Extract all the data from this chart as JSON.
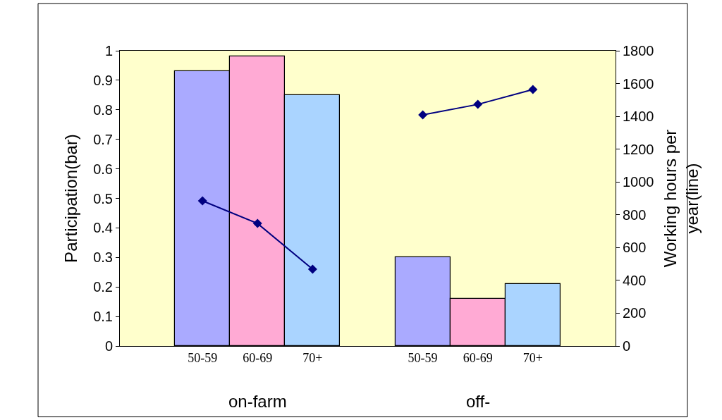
{
  "chart_data": {
    "type": "bar",
    "categories": [
      null,
      "50-59",
      "60-69",
      "70+",
      null,
      "50-59",
      "60-69",
      "70+",
      null
    ],
    "ylabel": "Participation(bar)",
    "y2label": "Working hours per year(line)",
    "annotations": [
      "on-farm",
      "off-"
    ],
    "series": [
      {
        "values": [
          null,
          0.93,
          0.98,
          0.85,
          null,
          0.3,
          0.16,
          0.21,
          null
        ],
        "colors": [
          null,
          "#aaaaff",
          "#ffaad4",
          "#aad4ff",
          null,
          "#aaaaff",
          "#ffaad4",
          "#aad4ff",
          null
        ]
      },
      {
        "type": "line",
        "axis": "y2",
        "color": "#000080",
        "marker": "diamond",
        "values": [
          null,
          885,
          747,
          468,
          null,
          1409,
          1473,
          1564,
          null
        ]
      }
    ],
    "ylim": [
      0,
      1
    ],
    "yticks": [
      0,
      0.1,
      0.2,
      0.3,
      0.4,
      0.5,
      0.6,
      0.7,
      0.8,
      0.9,
      1
    ],
    "y2lim": [
      0,
      1800
    ],
    "y2ticks": [
      0,
      200,
      400,
      600,
      800,
      1000,
      1200,
      1400,
      1600,
      1800
    ],
    "grid": false
  }
}
